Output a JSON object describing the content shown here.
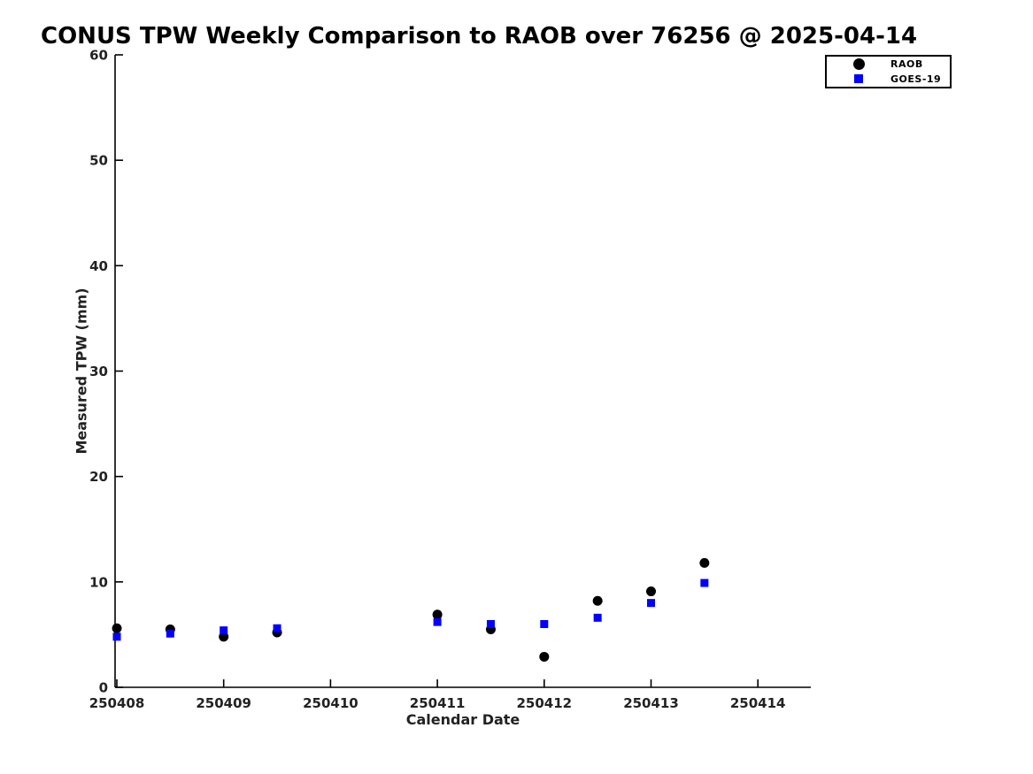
{
  "title": "CONUS TPW Weekly Comparison to RAOB over 76256 @ 2025-04-14",
  "axes": {
    "xlabel": "Calendar Date",
    "ylabel": "Measured TPW (mm)"
  },
  "legend": {
    "entries": [
      {
        "label": "RAOB",
        "marker": "circle-icon",
        "color": "#000000"
      },
      {
        "label": "GOES-19",
        "marker": "square-icon",
        "color": "#0000ff"
      }
    ],
    "position": "top-right-outside"
  },
  "chart_data": {
    "type": "scatter",
    "title": "CONUS TPW Weekly Comparison to RAOB over 76256 @ 2025-04-14",
    "xlabel": "Calendar Date",
    "ylabel": "Measured TPW (mm)",
    "ylim": [
      0,
      60
    ],
    "yticks": [
      0,
      10,
      20,
      30,
      40,
      50,
      60
    ],
    "xtick_labels": [
      "250408",
      "250409",
      "250410",
      "250411",
      "250412",
      "250413",
      "250414"
    ],
    "x": [
      250408,
      250408.5,
      250409,
      250409.5,
      250411,
      250411.5,
      250412,
      250412.5,
      250413,
      250413.5
    ],
    "series": [
      {
        "name": "RAOB",
        "marker": "circle",
        "color": "#000000",
        "values": [
          5.6,
          5.5,
          4.8,
          5.2,
          6.9,
          5.5,
          2.9,
          8.2,
          9.1,
          11.8
        ]
      },
      {
        "name": "GOES-19",
        "marker": "square",
        "color": "#0000ff",
        "values": [
          4.8,
          5.1,
          5.4,
          5.6,
          6.2,
          6.0,
          6.0,
          6.6,
          8.0,
          9.9
        ]
      }
    ],
    "legend_position": "top-right",
    "grid": false
  }
}
